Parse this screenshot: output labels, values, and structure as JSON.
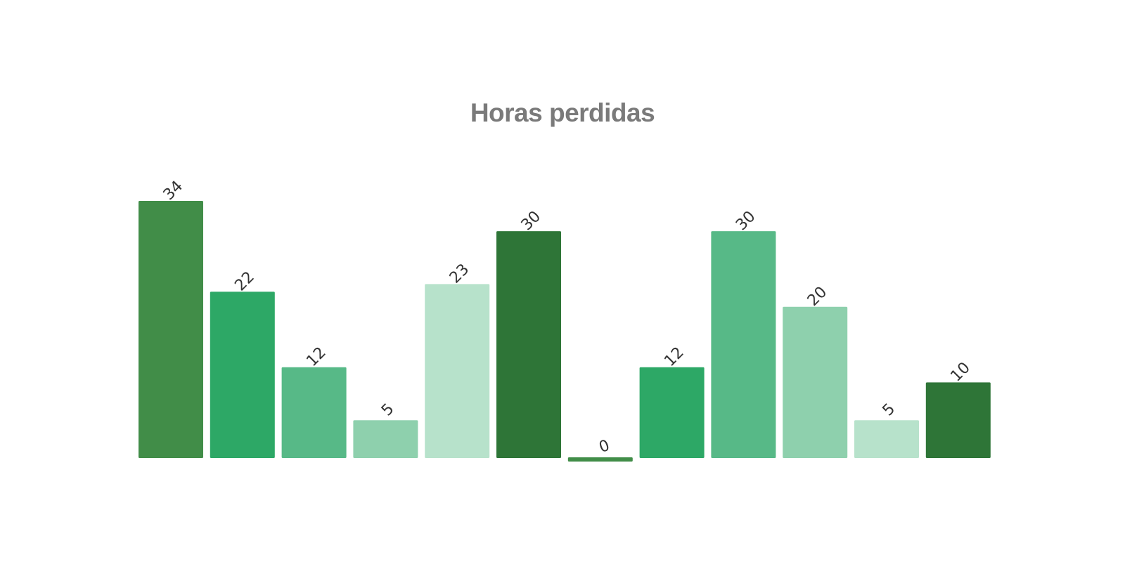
{
  "chart_data": {
    "type": "bar",
    "title": "Horas perdidas",
    "xlabel": "",
    "ylabel": "",
    "ylim": [
      0,
      34
    ],
    "grid": false,
    "legend": "none",
    "bars": [
      {
        "value": 34,
        "label": "34",
        "color": "#418d48"
      },
      {
        "value": 22,
        "label": "22",
        "color": "#2da866"
      },
      {
        "value": 12,
        "label": "12",
        "color": "#57b987"
      },
      {
        "value": 5,
        "label": "5",
        "color": "#8ed0ad"
      },
      {
        "value": 23,
        "label": "23",
        "color": "#b7e2cb"
      },
      {
        "value": 30,
        "label": "30",
        "color": "#2e7537"
      },
      {
        "value": 0,
        "label": "0",
        "color": "#418d48"
      },
      {
        "value": 12,
        "label": "12",
        "color": "#2da866"
      },
      {
        "value": 30,
        "label": "30",
        "color": "#57b987"
      },
      {
        "value": 20,
        "label": "20",
        "color": "#8ed0ad"
      },
      {
        "value": 5,
        "label": "5",
        "color": "#b7e2cb"
      },
      {
        "value": 10,
        "label": "10",
        "color": "#2e7537"
      }
    ]
  }
}
